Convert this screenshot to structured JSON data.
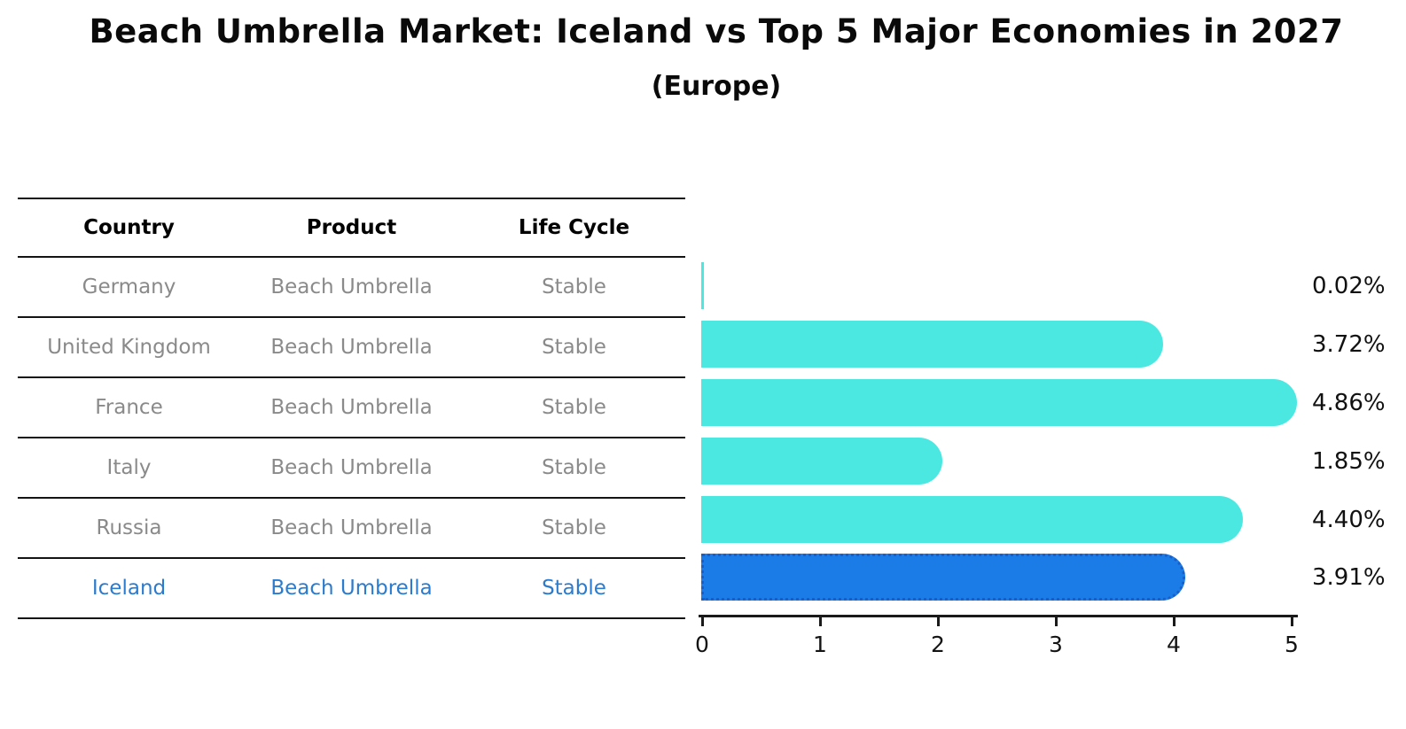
{
  "title": "Beach Umbrella Market: Iceland vs Top 5 Major Economies in 2027",
  "subtitle": "(Europe)",
  "table": {
    "headers": [
      "Country",
      "Product",
      "Life Cycle"
    ],
    "rows": [
      {
        "country": "Germany",
        "product": "Beach Umbrella",
        "life_cycle": "Stable"
      },
      {
        "country": "United Kingdom",
        "product": "Beach Umbrella",
        "life_cycle": "Stable"
      },
      {
        "country": "France",
        "product": "Beach Umbrella",
        "life_cycle": "Stable"
      },
      {
        "country": "Italy",
        "product": "Beach Umbrella",
        "life_cycle": "Stable"
      },
      {
        "country": "Russia",
        "product": "Beach Umbrella",
        "life_cycle": "Stable"
      },
      {
        "country": "Iceland",
        "product": "Beach Umbrella",
        "life_cycle": "Stable"
      }
    ],
    "highlighted_row": "Iceland"
  },
  "chart_data": {
    "type": "bar",
    "orientation": "horizontal",
    "title": "Beach Umbrella Market: Iceland vs Top 5 Major Economies in 2027",
    "subtitle": "(Europe)",
    "categories": [
      "Germany",
      "United Kingdom",
      "France",
      "Italy",
      "Russia",
      "Iceland"
    ],
    "values": [
      0.02,
      3.72,
      4.86,
      1.85,
      4.4,
      3.91
    ],
    "value_labels": [
      "0.02%",
      "3.72%",
      "4.86%",
      "1.85%",
      "4.40%",
      "3.91%"
    ],
    "xlim": [
      0,
      5
    ],
    "x_ticks": [
      "0",
      "1",
      "2",
      "3",
      "4",
      "5"
    ],
    "grid": false,
    "legend": "none",
    "bar_color": "#4be8e2",
    "highlight_category": "Iceland",
    "highlight_color": "#1b7ce8"
  },
  "colors": {
    "bar_cyan": "#4be8e2",
    "highlight_blue": "#1b7ce8",
    "highlight_text_blue": "#2b7bce",
    "table_text_gray": "#8a8a8a",
    "axis_black": "#1a1a1a"
  }
}
